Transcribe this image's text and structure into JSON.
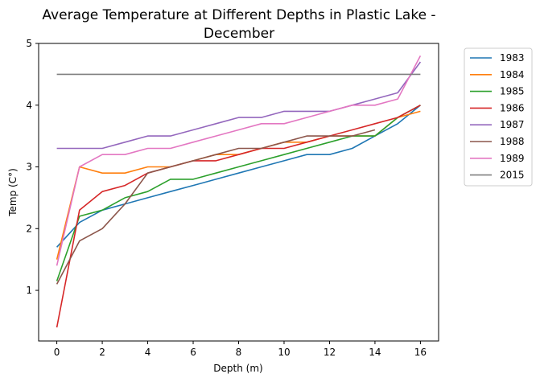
{
  "chart_data": {
    "type": "line",
    "title_line1": "Average Temperature at Different Depths in Plastic Lake -",
    "title_line2": "December",
    "xlabel": "Depth (m)",
    "ylabel": "Temp (C°)",
    "xlim": [
      -0.8,
      16.8
    ],
    "ylim": [
      0.18,
      5.0
    ],
    "xticks": [
      0,
      2,
      4,
      6,
      8,
      10,
      12,
      14,
      16
    ],
    "yticks": [
      1,
      2,
      3,
      4,
      5
    ],
    "legend_position": "outside-right",
    "grid": false,
    "series": [
      {
        "name": "1983",
        "color": "#1f77b4",
        "x": [
          0,
          1,
          2,
          3,
          4,
          5,
          6,
          7,
          8,
          9,
          10,
          11,
          12,
          13,
          14,
          15,
          16
        ],
        "y": [
          1.7,
          2.1,
          2.3,
          2.4,
          2.5,
          2.6,
          2.7,
          2.8,
          2.9,
          3.0,
          3.1,
          3.2,
          3.2,
          3.3,
          3.5,
          3.7,
          4.0
        ]
      },
      {
        "name": "1984",
        "color": "#ff7f0e",
        "x": [
          0,
          1,
          2,
          3,
          4,
          5,
          6,
          7,
          8,
          9,
          10,
          11,
          12,
          13,
          14,
          15,
          16
        ],
        "y": [
          1.5,
          3.0,
          2.9,
          2.9,
          3.0,
          3.0,
          3.1,
          3.2,
          3.2,
          3.3,
          3.4,
          3.4,
          3.5,
          3.5,
          3.5,
          3.8,
          3.9
        ]
      },
      {
        "name": "1985",
        "color": "#2ca02c",
        "x": [
          0,
          1,
          2,
          3,
          4,
          5,
          6,
          7,
          8,
          9,
          10,
          11,
          12,
          13,
          14,
          15,
          16
        ],
        "y": [
          1.15,
          2.2,
          2.3,
          2.5,
          2.6,
          2.8,
          2.8,
          2.9,
          3.0,
          3.1,
          3.2,
          3.3,
          3.4,
          3.5,
          3.5,
          3.8,
          4.0
        ]
      },
      {
        "name": "1986",
        "color": "#d62728",
        "x": [
          0,
          1,
          2,
          3,
          4,
          5,
          6,
          7,
          8,
          9,
          10,
          11,
          12,
          13,
          14,
          15,
          16
        ],
        "y": [
          0.4,
          2.3,
          2.6,
          2.7,
          2.9,
          3.0,
          3.1,
          3.1,
          3.2,
          3.3,
          3.3,
          3.4,
          3.5,
          3.6,
          3.7,
          3.8,
          4.0
        ]
      },
      {
        "name": "1987",
        "color": "#9467bd",
        "x": [
          0,
          1,
          2,
          3,
          4,
          5,
          6,
          7,
          8,
          9,
          10,
          11,
          12,
          13,
          14,
          15,
          16
        ],
        "y": [
          3.3,
          3.3,
          3.3,
          3.4,
          3.5,
          3.5,
          3.6,
          3.7,
          3.8,
          3.8,
          3.9,
          3.9,
          3.9,
          4.0,
          4.1,
          4.2,
          4.7
        ]
      },
      {
        "name": "1988",
        "color": "#8c564b",
        "x": [
          0,
          1,
          2,
          3,
          4,
          5,
          6,
          7,
          8,
          9,
          10,
          11,
          12,
          13,
          14
        ],
        "y": [
          1.1,
          1.8,
          2.0,
          2.4,
          2.9,
          3.0,
          3.1,
          3.2,
          3.3,
          3.3,
          3.4,
          3.5,
          3.5,
          3.5,
          3.6
        ]
      },
      {
        "name": "1989",
        "color": "#e377c2",
        "x": [
          0,
          1,
          2,
          3,
          4,
          5,
          6,
          7,
          8,
          9,
          10,
          11,
          12,
          13,
          14,
          15,
          16
        ],
        "y": [
          1.4,
          3.0,
          3.2,
          3.2,
          3.3,
          3.3,
          3.4,
          3.5,
          3.6,
          3.7,
          3.7,
          3.8,
          3.9,
          4.0,
          4.0,
          4.1,
          4.8
        ]
      },
      {
        "name": "2015",
        "color": "#7f7f7f",
        "x": [
          0,
          16
        ],
        "y": [
          4.5,
          4.5
        ]
      }
    ]
  }
}
